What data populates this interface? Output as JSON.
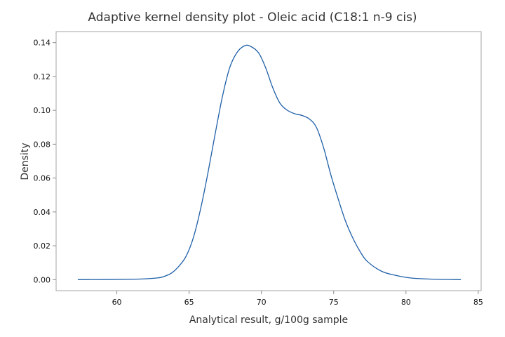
{
  "chart_data": {
    "type": "line",
    "title": "Adaptive kernel density plot - Oleic acid (C18:1 n-9 cis)",
    "xlabel": "Analytical result, g/100g sample",
    "ylabel": "Density",
    "xlim": [
      55.8,
      85.2
    ],
    "ylim": [
      -0.0065,
      0.1465
    ],
    "xticks": [
      "60",
      "65",
      "70",
      "75",
      "80",
      "85"
    ],
    "yticks": [
      "0.00",
      "0.02",
      "0.04",
      "0.06",
      "0.08",
      "0.10",
      "0.12",
      "0.14"
    ],
    "grid": false,
    "legend": "none",
    "line_color": "#1f5fa8",
    "series": [
      {
        "x": [
          57.3,
          61.3,
          62.8,
          63.3,
          63.8,
          64.3,
          64.8,
          65.3,
          65.8,
          66.3,
          66.8,
          67.3,
          67.8,
          68.3,
          68.8,
          69.2,
          69.8,
          70.3,
          70.8,
          71.3,
          71.8,
          72.3,
          72.8,
          73.3,
          73.8,
          74.3,
          74.8,
          75.3,
          75.8,
          76.3,
          76.8,
          77.3,
          78.3,
          79.3,
          80.3,
          81.8,
          83.8
        ],
        "y": [
          0.0,
          0.0003,
          0.001,
          0.002,
          0.004,
          0.008,
          0.014,
          0.025,
          0.042,
          0.063,
          0.086,
          0.108,
          0.125,
          0.134,
          0.138,
          0.138,
          0.134,
          0.125,
          0.113,
          0.104,
          0.1,
          0.098,
          0.097,
          0.095,
          0.09,
          0.078,
          0.062,
          0.048,
          0.035,
          0.025,
          0.017,
          0.011,
          0.005,
          0.0025,
          0.001,
          0.0003,
          0.0
        ]
      }
    ]
  }
}
